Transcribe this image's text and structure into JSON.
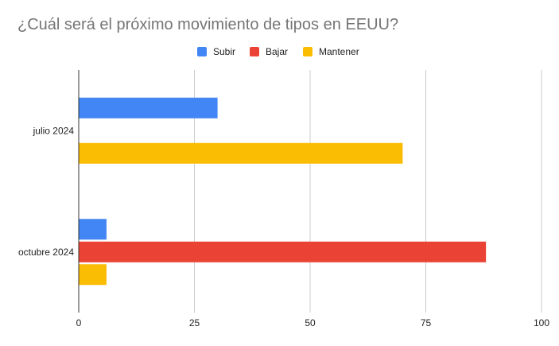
{
  "chart_data": {
    "type": "bar",
    "orientation": "horizontal",
    "title": "¿Cuál será el próximo movimiento de tipos en EEUU?",
    "categories": [
      "julio 2024",
      "octubre 2024"
    ],
    "series": [
      {
        "name": "Subir",
        "values": [
          30,
          6
        ],
        "color": "#4285f4"
      },
      {
        "name": "Bajar",
        "values": [
          0,
          88
        ],
        "color": "#ea4335"
      },
      {
        "name": "Mantener",
        "values": [
          70,
          6
        ],
        "color": "#fbbc04"
      }
    ],
    "xlim": [
      0,
      100
    ],
    "xticks": [
      "0",
      "25",
      "50",
      "75",
      "100"
    ],
    "grid": true,
    "legend_position": "top"
  }
}
